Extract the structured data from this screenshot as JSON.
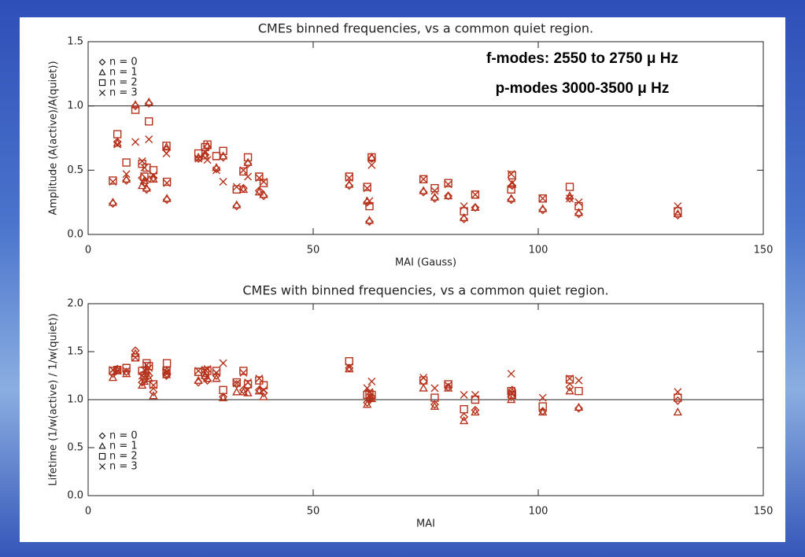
{
  "chart_data": [
    {
      "type": "scatter",
      "title": "CMEs binned frequencies, vs a common quiet region.",
      "x_label": "MAI (Gauss)",
      "y_label": "Amplitude (A(active)/A(quiet))",
      "annotations": [
        "f-modes: 2550 to 2750 μ Hz",
        "p-modes 3000-3500 μ Hz"
      ],
      "xlim": [
        0,
        150
      ],
      "xticks": [
        0,
        50,
        100,
        150
      ],
      "ylim": [
        0,
        1.5
      ],
      "yticks": [
        {
          "value": 0,
          "label": "0.0"
        },
        {
          "value": 0.5,
          "label": "0.5"
        },
        {
          "value": 1,
          "label": "1.0"
        },
        {
          "value": 1.5,
          "label": "1.5"
        }
      ],
      "hline": 1,
      "legend": "upper left",
      "x": [
        5.5,
        6.5,
        8.5,
        10.5,
        12,
        12.5,
        13,
        13.5,
        14.5,
        17.5,
        17.4,
        24.5,
        26,
        26.5,
        28.5,
        30,
        33,
        34.5,
        35.5,
        38,
        39,
        58,
        62,
        62.5,
        63,
        74.5,
        77,
        80,
        83.5,
        86,
        94,
        94.2,
        101,
        107,
        109,
        131
      ],
      "series": [
        {
          "name": "n = 0",
          "marker": "diamond",
          "color": "#b5321c",
          "values": [
            0.24,
            0.72,
            0.42,
            1.0,
            0.44,
            0.4,
            0.35,
            1.02,
            0.44,
            0.27,
            0.66,
            0.59,
            0.62,
            0.68,
            0.51,
            0.6,
            0.22,
            0.36,
            0.55,
            0.34,
            0.3,
            0.38,
            0.25,
            0.1,
            0.59,
            0.33,
            0.28,
            0.3,
            0.12,
            0.21,
            0.27,
            0.38,
            0.19,
            0.28,
            0.16,
            0.15
          ]
        },
        {
          "name": "n = 1",
          "marker": "triangle",
          "color": "#b5321c",
          "values": [
            0.25,
            0.71,
            0.43,
            1.01,
            0.38,
            0.42,
            0.36,
            1.03,
            0.43,
            0.28,
            0.68,
            0.6,
            0.61,
            0.69,
            0.52,
            0.61,
            0.23,
            0.35,
            0.56,
            0.33,
            0.31,
            0.39,
            0.26,
            0.11,
            0.6,
            0.34,
            0.29,
            0.3,
            0.13,
            0.21,
            0.28,
            0.39,
            0.2,
            0.3,
            0.17,
            0.16
          ]
        },
        {
          "name": "n = 2",
          "marker": "square",
          "color": "#b5321c",
          "values": [
            0.42,
            0.78,
            0.56,
            0.97,
            0.55,
            0.45,
            0.52,
            0.88,
            0.5,
            0.41,
            0.69,
            0.63,
            0.68,
            0.7,
            0.61,
            0.65,
            0.35,
            0.49,
            0.6,
            0.45,
            0.4,
            0.45,
            0.37,
            0.22,
            0.6,
            0.43,
            0.36,
            0.4,
            0.18,
            0.31,
            0.35,
            0.46,
            0.28,
            0.37,
            0.22,
            0.18
          ]
        },
        {
          "name": "n = 3",
          "marker": "x",
          "color": "#b5321c",
          "values": [
            0.41,
            0.7,
            0.47,
            0.72,
            0.57,
            0.52,
            0.43,
            0.74,
            0.46,
            0.4,
            0.63,
            0.59,
            0.64,
            0.58,
            0.5,
            0.41,
            0.37,
            0.5,
            0.45,
            0.44,
            0.41,
            0.44,
            0.36,
            0.26,
            0.54,
            0.43,
            0.34,
            0.39,
            0.22,
            0.31,
            0.47,
            0.4,
            0.28,
            0.28,
            0.25,
            0.22
          ]
        }
      ]
    },
    {
      "type": "scatter",
      "title": "CMEs with binned frequencies, vs a common quiet region.",
      "x_label": "MAI",
      "y_label": "Lifetime (1/w(active) / 1/w(quiet))",
      "xlim": [
        0,
        150
      ],
      "xticks": [
        0,
        50,
        100,
        150
      ],
      "ylim": [
        0,
        2
      ],
      "yticks": [
        {
          "value": 0,
          "label": "0.0"
        },
        {
          "value": 0.5,
          "label": "0.5"
        },
        {
          "value": 1,
          "label": "1.0"
        },
        {
          "value": 1.5,
          "label": "1.5"
        },
        {
          "value": 2,
          "label": "2.0"
        }
      ],
      "hline": 1,
      "legend": "lower left",
      "x": [
        5.5,
        6.5,
        8.5,
        10.5,
        12,
        12.5,
        13,
        13.5,
        14.5,
        17.5,
        17.4,
        24.5,
        26,
        26.5,
        28.5,
        30,
        33,
        34.5,
        35.5,
        38,
        39,
        58,
        62,
        62.5,
        63,
        74.5,
        77,
        80,
        83.5,
        86,
        94,
        94.2,
        101,
        107,
        109,
        131
      ],
      "series": [
        {
          "name": "n = 0",
          "marker": "diamond",
          "color": "#b5321c",
          "values": [
            1.27,
            1.32,
            1.29,
            1.51,
            1.18,
            1.21,
            1.28,
            1.25,
            1.08,
            1.27,
            1.25,
            1.18,
            1.23,
            1.2,
            1.25,
            1.03,
            1.16,
            1.1,
            1.14,
            1.1,
            1.07,
            1.33,
            0.97,
            1.0,
            1.03,
            1.19,
            0.95,
            1.13,
            0.82,
            0.89,
            1.03,
            1.1,
            0.88,
            1.13,
            0.91,
            0.99
          ]
        },
        {
          "name": "n = 1",
          "marker": "triangle",
          "color": "#b5321c",
          "values": [
            1.23,
            1.3,
            1.27,
            1.48,
            1.15,
            1.19,
            1.3,
            1.22,
            1.04,
            1.3,
            1.26,
            1.2,
            1.25,
            1.22,
            1.22,
            1.02,
            1.08,
            1.08,
            1.07,
            1.09,
            1.03,
            1.32,
            0.95,
            1.02,
            1.01,
            1.12,
            0.93,
            1.12,
            0.78,
            0.87,
            1.0,
            1.08,
            0.87,
            1.09,
            0.92,
            0.87
          ]
        },
        {
          "name": "n = 2",
          "marker": "square",
          "color": "#b5321c",
          "values": [
            1.3,
            1.31,
            1.33,
            1.44,
            1.3,
            1.25,
            1.38,
            1.35,
            1.16,
            1.38,
            1.3,
            1.29,
            1.28,
            1.3,
            1.3,
            1.1,
            1.18,
            1.3,
            1.16,
            1.2,
            1.15,
            1.4,
            1.05,
            1.06,
            1.05,
            1.2,
            1.02,
            1.16,
            0.9,
            1.0,
            1.09,
            1.05,
            0.93,
            1.21,
            1.09,
            1.02
          ]
        },
        {
          "name": "n = 3",
          "marker": "x",
          "color": "#b5321c",
          "values": [
            1.31,
            1.3,
            1.3,
            1.44,
            1.25,
            1.31,
            1.36,
            1.33,
            1.15,
            1.29,
            1.28,
            1.3,
            1.31,
            1.32,
            1.28,
            1.38,
            1.17,
            1.28,
            1.18,
            1.22,
            1.1,
            1.34,
            1.12,
            1.08,
            1.19,
            1.23,
            1.12,
            1.15,
            1.05,
            1.05,
            1.27,
            1.07,
            1.02,
            1.22,
            1.2,
            1.08
          ]
        }
      ]
    }
  ]
}
